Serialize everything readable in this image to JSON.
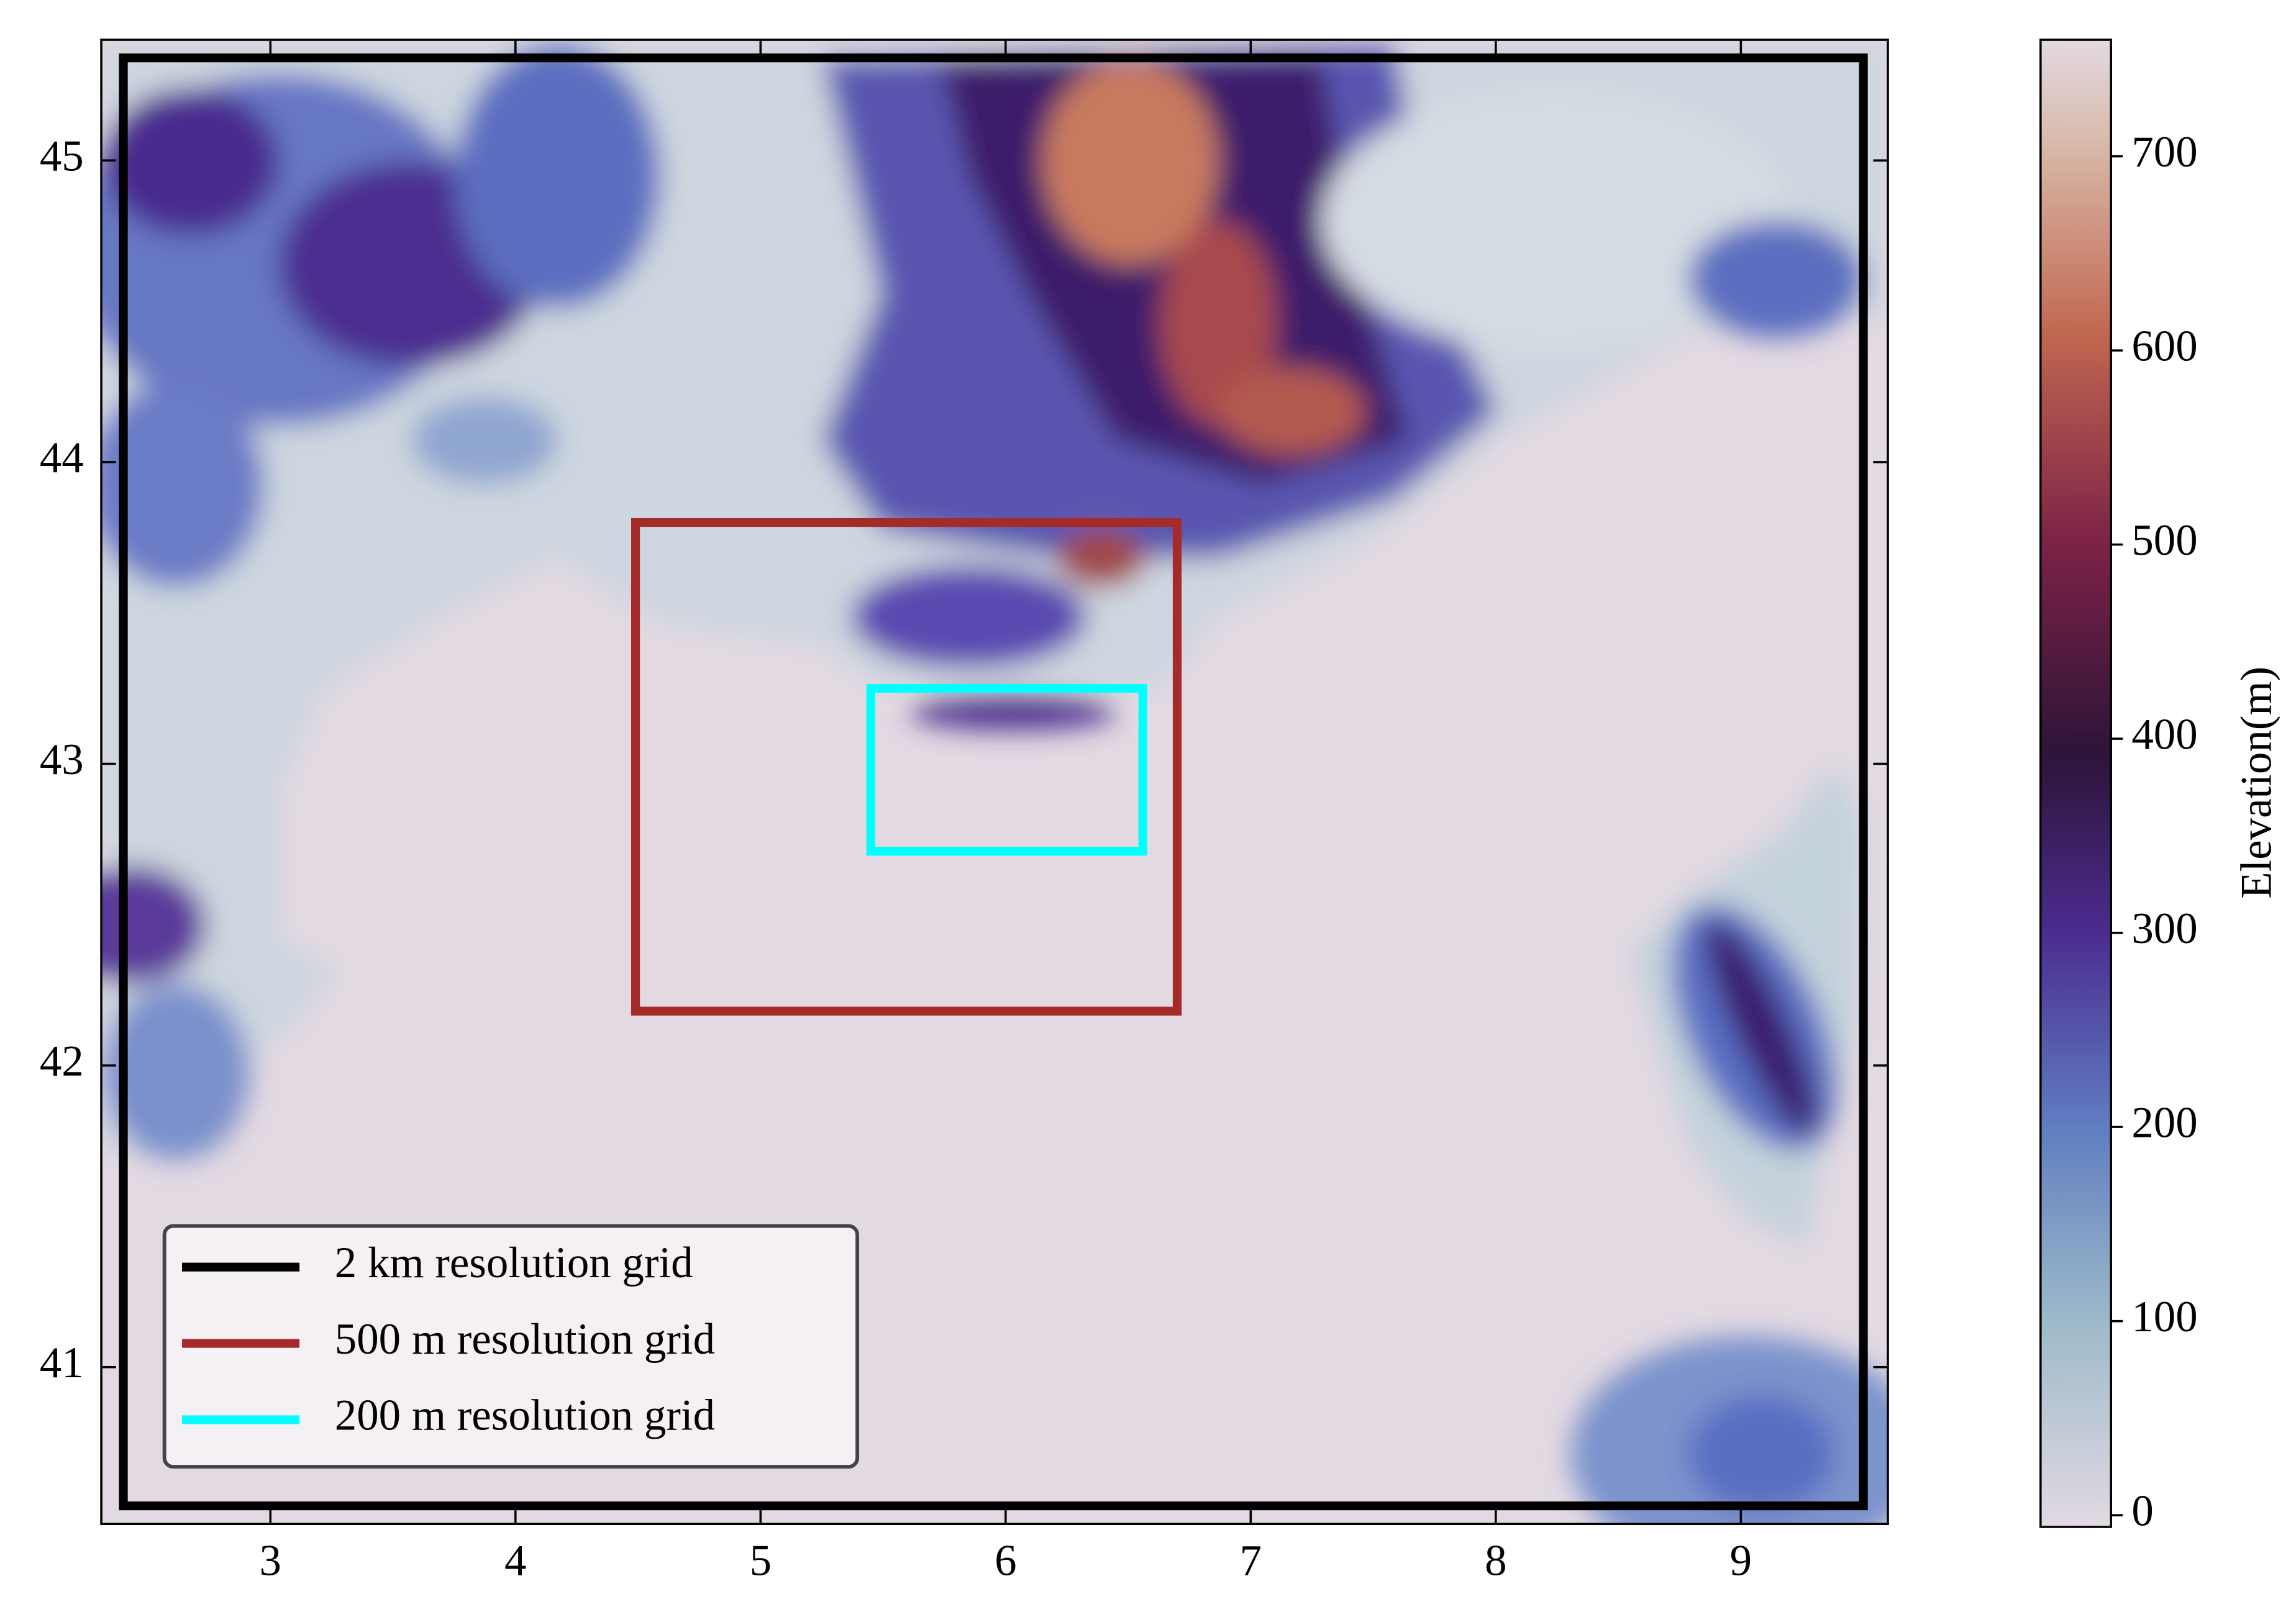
{
  "chart_data": {
    "type": "map",
    "xlim": [
      2.31,
      9.6
    ],
    "ylim": [
      40.48,
      45.4
    ],
    "xticks": [
      3,
      4,
      5,
      6,
      7,
      8,
      9
    ],
    "yticks": [
      41,
      42,
      43,
      44,
      45
    ],
    "series": [
      {
        "name": "2 km resolution grid",
        "color": "#000000",
        "lon": [
          2.4,
          9.5
        ],
        "lat": [
          40.54,
          45.34
        ]
      },
      {
        "name": "500 m resolution grid",
        "color": "#a52a2a",
        "lon": [
          4.49,
          6.7
        ],
        "lat": [
          42.18,
          43.8
        ]
      },
      {
        "name": "200 m resolution grid",
        "color": "#00ffff",
        "lon": [
          5.45,
          6.56
        ],
        "lat": [
          42.71,
          43.25
        ]
      }
    ],
    "colorbar": {
      "label": "Elevation(m)",
      "lim": [
        -6,
        760
      ],
      "ticks": [
        0,
        100,
        200,
        300,
        400,
        500,
        600,
        700
      ]
    }
  }
}
